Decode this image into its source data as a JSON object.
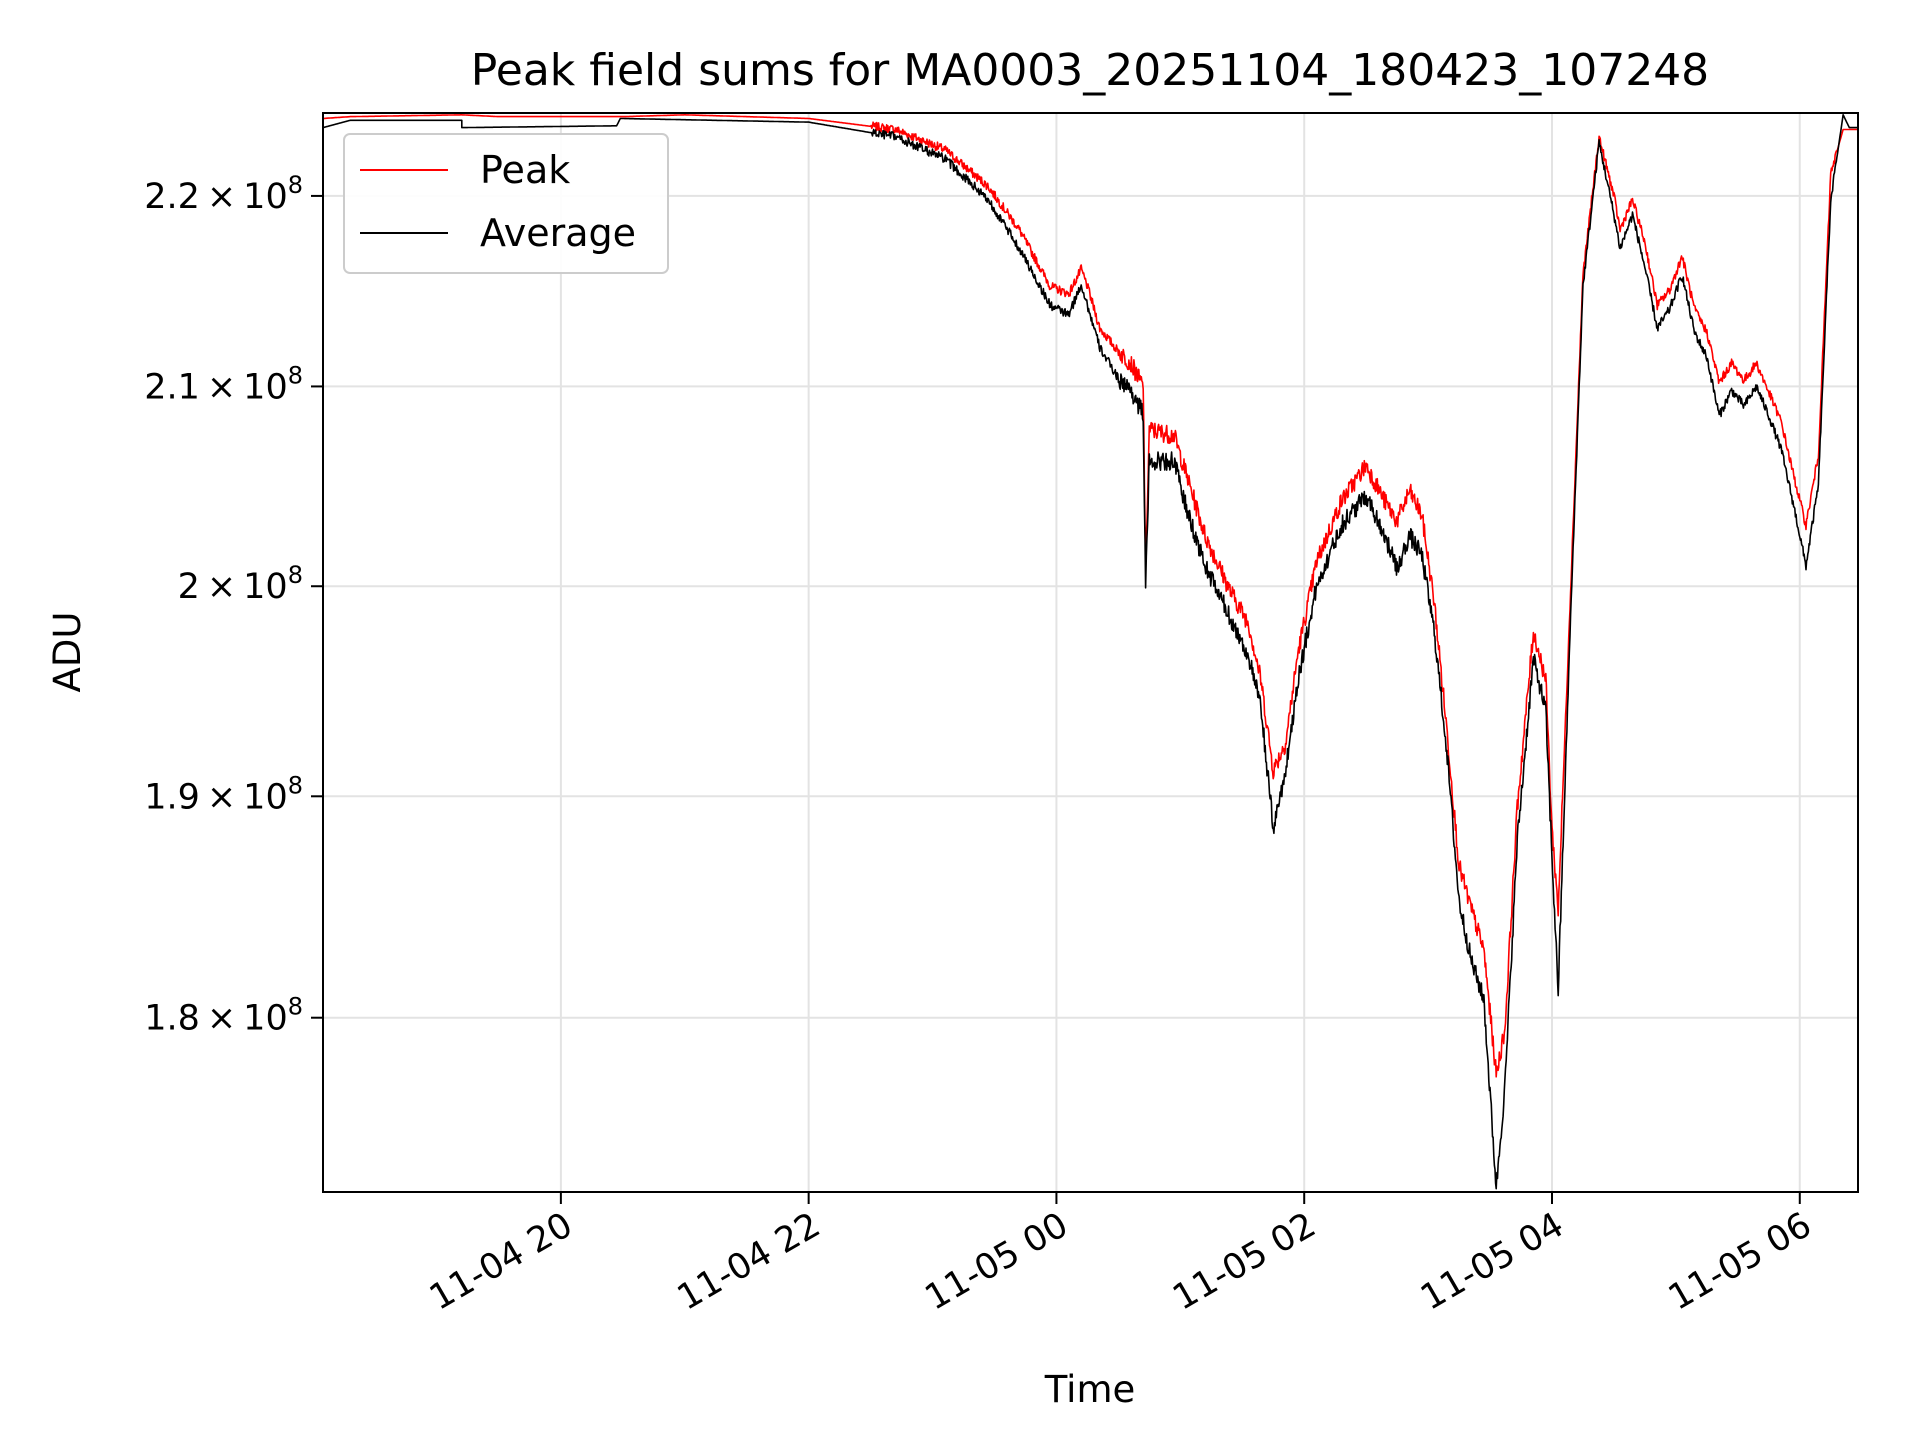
{
  "chart_data": {
    "type": "line",
    "title": "Peak field sums for MA0003_20251104_180423_107248",
    "xlabel": "Time",
    "ylabel": "ADU",
    "x_unit": "hours since 11-04 18:00",
    "xlim": [
      18.08,
      30.47
    ],
    "ylim": [
      172500000.0,
      224500000.0
    ],
    "yscale": "log",
    "grid": true,
    "legend_position": "upper-left",
    "x_ticks": [
      {
        "value": 20,
        "label": "11-04 20"
      },
      {
        "value": 22,
        "label": "11-04 22"
      },
      {
        "value": 24,
        "label": "11-05 00"
      },
      {
        "value": 26,
        "label": "11-05 02"
      },
      {
        "value": 28,
        "label": "11-05 04"
      },
      {
        "value": 30,
        "label": "11-05 06"
      }
    ],
    "y_ticks": [
      {
        "value": 180000000.0,
        "mantissa": "1.8",
        "exponent": "8"
      },
      {
        "value": 190000000.0,
        "mantissa": "1.9",
        "exponent": "8"
      },
      {
        "value": 200000000.0,
        "mantissa": "2",
        "exponent": "8"
      },
      {
        "value": 210000000.0,
        "mantissa": "2.1",
        "exponent": "8"
      },
      {
        "value": 220000000.0,
        "mantissa": "2.2",
        "exponent": "8"
      }
    ],
    "tick_times_symbol": "×",
    "tick_base": "10",
    "series": [
      {
        "name": "Peak",
        "color": "#ff0000",
        "points": [
          [
            18.08,
            224200000.0
          ],
          [
            18.3,
            224300000.0
          ],
          [
            19.2,
            224400000.0
          ],
          [
            19.5,
            224300000.0
          ],
          [
            20.5,
            224300000.0
          ],
          [
            21.0,
            224400000.0
          ],
          [
            22.0,
            224200000.0
          ],
          [
            22.7,
            223600000.0
          ],
          [
            23.1,
            222500000.0
          ],
          [
            23.45,
            220500000.0
          ],
          [
            23.7,
            218200000.0
          ],
          [
            23.95,
            215200000.0
          ],
          [
            24.1,
            214800000.0
          ],
          [
            24.2,
            216100000.0
          ],
          [
            24.25,
            215200000.0
          ],
          [
            24.35,
            213000000.0
          ],
          [
            24.5,
            211800000.0
          ],
          [
            24.6,
            211200000.0
          ],
          [
            24.7,
            210000000.0
          ],
          [
            24.72,
            201000000.0
          ],
          [
            24.75,
            207800000.0
          ],
          [
            24.95,
            207500000.0
          ],
          [
            25.05,
            205500000.0
          ],
          [
            25.2,
            202500000.0
          ],
          [
            25.4,
            199800000.0
          ],
          [
            25.55,
            198200000.0
          ],
          [
            25.65,
            195500000.0
          ],
          [
            25.75,
            191200000.0
          ],
          [
            25.85,
            192500000.0
          ],
          [
            25.95,
            196800000.0
          ],
          [
            26.1,
            201200000.0
          ],
          [
            26.3,
            204200000.0
          ],
          [
            26.5,
            206000000.0
          ],
          [
            26.65,
            204200000.0
          ],
          [
            26.75,
            203200000.0
          ],
          [
            26.85,
            204700000.0
          ],
          [
            26.95,
            203500000.0
          ],
          [
            27.05,
            199200000.0
          ],
          [
            27.15,
            193200000.0
          ],
          [
            27.25,
            186800000.0
          ],
          [
            27.35,
            184800000.0
          ],
          [
            27.45,
            183000000.0
          ],
          [
            27.55,
            177500000.0
          ],
          [
            27.62,
            179500000.0
          ],
          [
            27.72,
            189500000.0
          ],
          [
            27.85,
            197800000.0
          ],
          [
            27.95,
            195500000.0
          ],
          [
            28.0,
            188500000.0
          ],
          [
            28.05,
            184800000.0
          ],
          [
            28.15,
            199800000.0
          ],
          [
            28.25,
            215800000.0
          ],
          [
            28.38,
            223200000.0
          ],
          [
            28.5,
            220000000.0
          ],
          [
            28.55,
            218200000.0
          ],
          [
            28.65,
            219800000.0
          ],
          [
            28.75,
            217500000.0
          ],
          [
            28.85,
            214200000.0
          ],
          [
            28.95,
            215000000.0
          ],
          [
            29.05,
            216800000.0
          ],
          [
            29.15,
            214000000.0
          ],
          [
            29.25,
            212800000.0
          ],
          [
            29.35,
            210200000.0
          ],
          [
            29.45,
            211200000.0
          ],
          [
            29.55,
            210300000.0
          ],
          [
            29.65,
            211200000.0
          ],
          [
            29.75,
            209700000.0
          ],
          [
            29.85,
            208200000.0
          ],
          [
            29.95,
            205500000.0
          ],
          [
            30.05,
            203000000.0
          ],
          [
            30.15,
            206500000.0
          ],
          [
            30.25,
            221200000.0
          ],
          [
            30.35,
            223600000.0
          ],
          [
            30.47,
            223600000.0
          ]
        ]
      },
      {
        "name": "Average",
        "color": "#000000",
        "points": [
          [
            18.08,
            223700000.0
          ],
          [
            18.3,
            224100000.0
          ],
          [
            19.2,
            224100000.0
          ],
          [
            19.2,
            223700000.0
          ],
          [
            20.45,
            223800000.0
          ],
          [
            20.48,
            224200000.0
          ],
          [
            22.0,
            224000000.0
          ],
          [
            22.7,
            223200000.0
          ],
          [
            23.1,
            222000000.0
          ],
          [
            23.45,
            219800000.0
          ],
          [
            23.7,
            217200000.0
          ],
          [
            23.95,
            214200000.0
          ],
          [
            24.1,
            213700000.0
          ],
          [
            24.2,
            215300000.0
          ],
          [
            24.25,
            214200000.0
          ],
          [
            24.35,
            212000000.0
          ],
          [
            24.5,
            210400000.0
          ],
          [
            24.6,
            209800000.0
          ],
          [
            24.7,
            208600000.0
          ],
          [
            24.72,
            200000000.0
          ],
          [
            24.75,
            206200000.0
          ],
          [
            24.95,
            206200000.0
          ],
          [
            25.05,
            203800000.0
          ],
          [
            25.2,
            201000000.0
          ],
          [
            25.4,
            198500000.0
          ],
          [
            25.55,
            196600000.0
          ],
          [
            25.65,
            194200000.0
          ],
          [
            25.75,
            188500000.0
          ],
          [
            25.85,
            191200000.0
          ],
          [
            25.95,
            195500000.0
          ],
          [
            26.1,
            200000000.0
          ],
          [
            26.3,
            203000000.0
          ],
          [
            26.5,
            204500000.0
          ],
          [
            26.65,
            202500000.0
          ],
          [
            26.75,
            200800000.0
          ],
          [
            26.85,
            202500000.0
          ],
          [
            26.95,
            201500000.0
          ],
          [
            27.05,
            197800000.0
          ],
          [
            27.15,
            192200000.0
          ],
          [
            27.25,
            185200000.0
          ],
          [
            27.35,
            182500000.0
          ],
          [
            27.45,
            180800000.0
          ],
          [
            27.55,
            172700000.0
          ],
          [
            27.62,
            177000000.0
          ],
          [
            27.72,
            188000000.0
          ],
          [
            27.85,
            196500000.0
          ],
          [
            27.95,
            194000000.0
          ],
          [
            28.0,
            187200000.0
          ],
          [
            28.05,
            181200000.0
          ],
          [
            28.15,
            198500000.0
          ],
          [
            28.25,
            215200000.0
          ],
          [
            28.38,
            222900000.0
          ],
          [
            28.5,
            219000000.0
          ],
          [
            28.55,
            217200000.0
          ],
          [
            28.65,
            219000000.0
          ],
          [
            28.75,
            216200000.0
          ],
          [
            28.85,
            213000000.0
          ],
          [
            28.95,
            214000000.0
          ],
          [
            29.05,
            215800000.0
          ],
          [
            29.15,
            212800000.0
          ],
          [
            29.25,
            211500000.0
          ],
          [
            29.35,
            208500000.0
          ],
          [
            29.45,
            209800000.0
          ],
          [
            29.55,
            209000000.0
          ],
          [
            29.65,
            210000000.0
          ],
          [
            29.75,
            208500000.0
          ],
          [
            29.85,
            206800000.0
          ],
          [
            29.95,
            204000000.0
          ],
          [
            30.05,
            201000000.0
          ],
          [
            30.15,
            205000000.0
          ],
          [
            30.25,
            219800000.0
          ],
          [
            30.35,
            224400000.0
          ],
          [
            30.4,
            223700000.0
          ],
          [
            30.47,
            223700000.0
          ]
        ]
      }
    ]
  },
  "style": {
    "grid_color": "#e3e3e3",
    "axis_color": "#000000",
    "legend_border": "#cccccc"
  }
}
